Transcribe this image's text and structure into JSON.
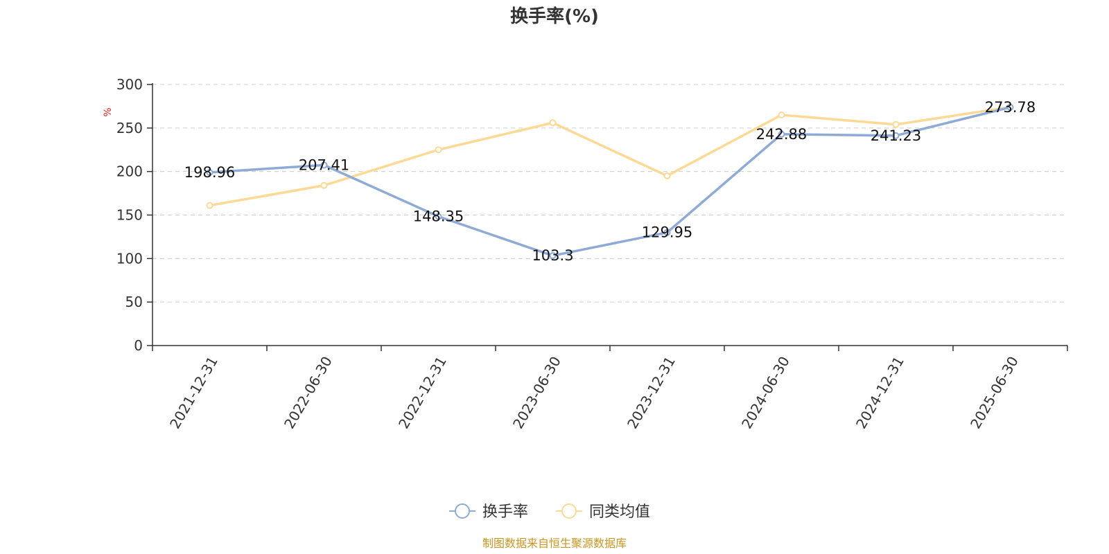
{
  "chart_data": {
    "type": "line",
    "title": "换手率(%)",
    "ylabel": "%",
    "xlabel": "",
    "categories": [
      "2021-12-31",
      "2022-06-30",
      "2022-12-31",
      "2023-06-30",
      "2023-12-31",
      "2024-06-30",
      "2024-12-31",
      "2025-06-30"
    ],
    "ylim": [
      0,
      300
    ],
    "yticks": [
      0,
      50,
      100,
      150,
      200,
      250,
      300
    ],
    "grid": true,
    "legend_position": "bottom",
    "series": [
      {
        "name": "换手率",
        "color": "#8eaad6",
        "values": [
          198.96,
          207.41,
          148.35,
          103.3,
          129.95,
          242.88,
          241.23,
          273.78
        ],
        "labels": [
          "198.96",
          "207.41",
          "148.35",
          "103.3",
          "129.95",
          "242.88",
          "241.23",
          "273.78"
        ]
      },
      {
        "name": "同类均值",
        "color": "#fcd995",
        "values": [
          161,
          184,
          225,
          256,
          195,
          265,
          254,
          274
        ]
      }
    ],
    "source": "制图数据来自恒生聚源数据库"
  }
}
